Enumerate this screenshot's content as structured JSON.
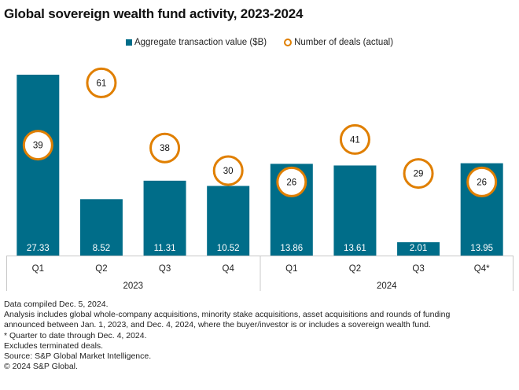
{
  "chart_data": {
    "type": "bar",
    "title": "Global sovereign wealth fund activity, 2023-2024",
    "xlabel": "",
    "ylabel": "",
    "grid": false,
    "legend_position": "top-center",
    "legend": [
      {
        "name": "Aggregate transaction value ($B)",
        "marker": "square",
        "color": "#006D89"
      },
      {
        "name": "Number of deals (actual)",
        "marker": "circle",
        "color": "#E07F00"
      }
    ],
    "categories": [
      "Q1",
      "Q2",
      "Q3",
      "Q4",
      "Q1",
      "Q2",
      "Q3",
      "Q4*"
    ],
    "groups": [
      {
        "label": "2023",
        "start": 0,
        "end": 3
      },
      {
        "label": "2024",
        "start": 4,
        "end": 7
      }
    ],
    "series": [
      {
        "name": "Aggregate transaction value ($B)",
        "type": "bar",
        "values": [
          27.33,
          8.52,
          11.31,
          10.52,
          13.86,
          13.61,
          2.01,
          13.95
        ]
      },
      {
        "name": "Number of deals (actual)",
        "type": "circle-marker",
        "values": [
          39,
          61,
          38,
          30,
          26,
          41,
          29,
          26
        ]
      }
    ],
    "colors": {
      "bar": "#006D89",
      "circle": "#E07F00",
      "axis": "#C8C8C8"
    }
  },
  "notes": [
    "Data compiled Dec. 5, 2024.",
    "Analysis includes global whole-company acquisitions, minority stake acquisitions, asset acquisitions and rounds of funding",
    "announced between Jan. 1, 2023, and Dec. 4, 2024, where the buyer/investor is or includes a sovereign wealth fund.",
    "* Quarter to date through Dec. 4, 2024.",
    "Excludes terminated deals.",
    "Source: S&P Global Market Intelligence.",
    "© 2024 S&P Global."
  ]
}
